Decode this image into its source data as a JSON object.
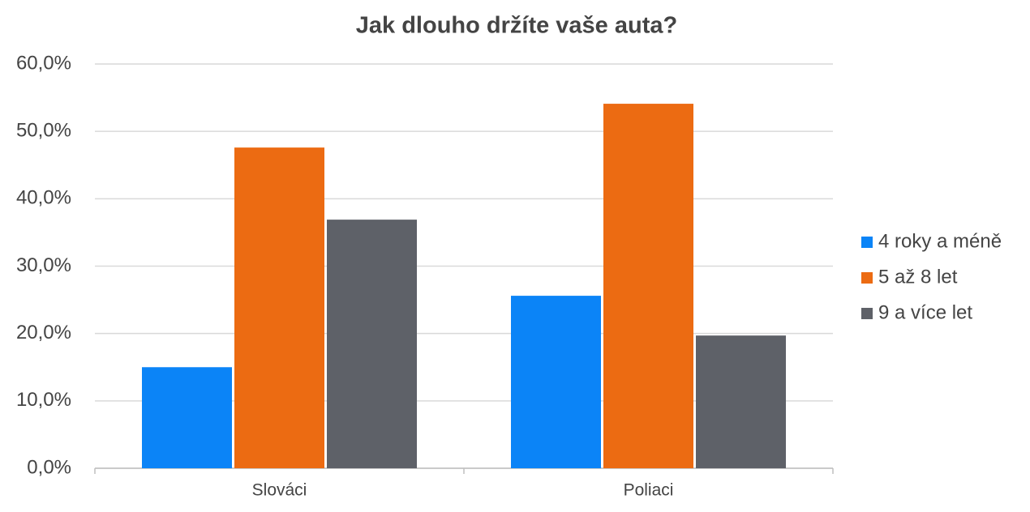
{
  "chart_data": {
    "type": "bar",
    "title": "Jak dlouho držíte vaše auta?",
    "categories": [
      "Slováci",
      "Poliaci"
    ],
    "series": [
      {
        "name": "4 roky a méně",
        "color": "#0b84f7",
        "values": [
          15.0,
          25.6
        ]
      },
      {
        "name": "5 až 8 let",
        "color": "#ec6b12",
        "values": [
          47.6,
          54.1
        ]
      },
      {
        "name": "9 a více let",
        "color": "#5e6168",
        "values": [
          36.9,
          19.7
        ]
      }
    ],
    "ylim": [
      0,
      60
    ],
    "yticks": [
      {
        "value": 0,
        "label": "0,0%"
      },
      {
        "value": 10,
        "label": "10,0%"
      },
      {
        "value": 20,
        "label": "20,0%"
      },
      {
        "value": 30,
        "label": "30,0%"
      },
      {
        "value": 40,
        "label": "40,0%"
      },
      {
        "value": 50,
        "label": "50,0%"
      },
      {
        "value": 60,
        "label": "60,0%"
      }
    ],
    "grid": true,
    "legend": "right"
  }
}
